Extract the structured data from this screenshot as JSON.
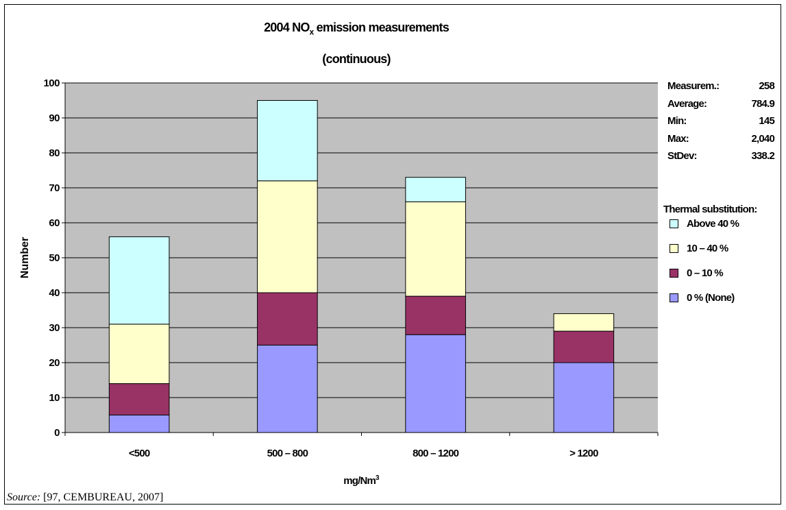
{
  "chart_data": {
    "type": "bar",
    "stacked": true,
    "title": "2004 NO",
    "title_subscript": "x",
    "title_suffix": " emission measurements",
    "subtitle": "(continuous)",
    "xlabel": "mg/Nm",
    "xlabel_superscript": "3",
    "ylabel": "Number",
    "ylim": [
      0,
      100
    ],
    "yticks": [
      0,
      10,
      20,
      30,
      40,
      50,
      60,
      70,
      80,
      90,
      100
    ],
    "categories": [
      "<500",
      "500 – 800",
      "800 – 1200",
      "> 1200"
    ],
    "series": [
      {
        "name": "0 % (None)",
        "color": "#9999FF",
        "values": [
          5,
          25,
          28,
          20
        ]
      },
      {
        "name": "0 – 10 %",
        "color": "#993366",
        "values": [
          9,
          15,
          11,
          9
        ]
      },
      {
        "name": "10 – 40 %",
        "color": "#FFFFCC",
        "values": [
          17,
          32,
          27,
          5
        ]
      },
      {
        "name": "Above 40 %",
        "color": "#CCFFFF",
        "values": [
          25,
          23,
          7,
          0
        ]
      }
    ],
    "grid": true,
    "plot_background": "#C0C0C0",
    "legend_position": "right",
    "legend_title": "Thermal substitution:"
  },
  "stats": [
    {
      "label": "Measurem.:",
      "value": "258"
    },
    {
      "label": "Average:",
      "value": "784.9"
    },
    {
      "label": "Min:",
      "value": "145"
    },
    {
      "label": "Max:",
      "value": "2,040"
    },
    {
      "label": "StDev:",
      "value": "338.2"
    }
  ],
  "legend_order": [
    3,
    2,
    1,
    0
  ],
  "source": {
    "label": "Source:",
    "text": " [97, CEMBUREAU, 2007]"
  }
}
